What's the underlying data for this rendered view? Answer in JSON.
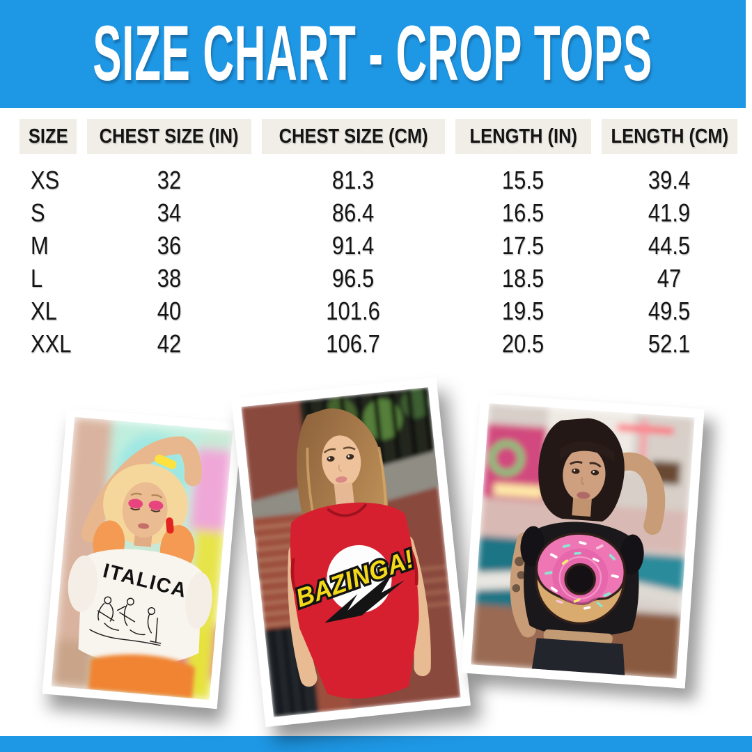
{
  "colors": {
    "accent_blue": "#1E97E4",
    "header_cell_bg": "#F0EEE7",
    "text": "#141414"
  },
  "banner": {
    "title": "SIZE CHART - CROP TOPS"
  },
  "table": {
    "headers": [
      "SIZE",
      "CHEST SIZE (IN)",
      "CHEST SIZE (CM)",
      "LENGTH (IN)",
      "LENGTH (CM)"
    ],
    "rows": [
      [
        "XS",
        "32",
        "81.3",
        "15.5",
        "39.4"
      ],
      [
        "S",
        "34",
        "86.4",
        "16.5",
        "41.9"
      ],
      [
        "M",
        "36",
        "91.4",
        "17.5",
        "44.5"
      ],
      [
        "L",
        "38",
        "96.5",
        "18.5",
        "47"
      ],
      [
        "XL",
        "40",
        "101.6",
        "19.5",
        "49.5"
      ],
      [
        "XXL",
        "42",
        "106.7",
        "20.5",
        "52.1"
      ]
    ]
  },
  "photos": [
    {
      "shirt_text": "ITALICA",
      "shirt_color": "#F8F4EE",
      "description": "blonde model in white ITALICA crop top"
    },
    {
      "shirt_text": "BAZINGA!",
      "shirt_color": "#D7202F",
      "description": "model in red BAZINGA! crop top"
    },
    {
      "shirt_text": "",
      "shirt_color": "#1A181B",
      "description": "model in black donut crop top"
    }
  ]
}
